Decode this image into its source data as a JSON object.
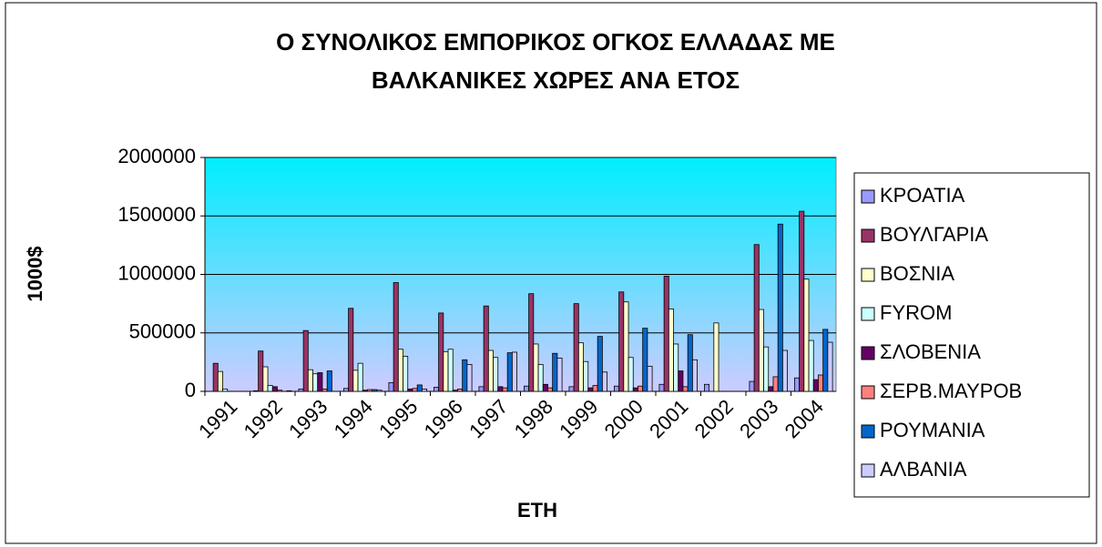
{
  "chart_data": {
    "type": "bar",
    "title": [
      "Ο ΣΥΝΟΛΙΚΟΣ ΕΜΠΟΡΙΚΟΣ ΟΓΚΟΣ ΕΛΛΑΔΑΣ ΜΕ",
      "ΒΑΛΚΑΝΙΚΕΣ ΧΩΡΕΣ ΑΝΑ ΕΤΟΣ"
    ],
    "x_label": "ΕΤΗ",
    "y_label": "1000$",
    "categories": [
      "1991",
      "1992",
      "1993",
      "1994",
      "1995",
      "1996",
      "1997",
      "1998",
      "1999",
      "2000",
      "2001",
      "2002",
      "2003",
      "2004"
    ],
    "series": [
      {
        "name": "ΚΡΟΑΤΙΑ",
        "color": "#9999ff",
        "values": [
          0,
          5000,
          20000,
          25000,
          75000,
          35000,
          40000,
          45000,
          40000,
          45000,
          60000,
          60000,
          85000,
          115000
        ]
      },
      {
        "name": "ΒΟΥΛΓΑΡΙΑ",
        "color": "#993366",
        "values": [
          240000,
          345000,
          520000,
          710000,
          930000,
          670000,
          730000,
          835000,
          750000,
          850000,
          985000,
          0,
          1255000,
          1540000
        ]
      },
      {
        "name": "ΒΟΣΝΙΑ",
        "color": "#ffffcc",
        "values": [
          170000,
          210000,
          185000,
          180000,
          360000,
          340000,
          350000,
          405000,
          415000,
          765000,
          705000,
          585000,
          700000,
          960000
        ]
      },
      {
        "name": "FYROM",
        "color": "#ccffff",
        "values": [
          20000,
          50000,
          150000,
          240000,
          300000,
          360000,
          290000,
          230000,
          255000,
          290000,
          405000,
          0,
          380000,
          435000
        ]
      },
      {
        "name": "ΣΛΟΒΕΝΙΑ",
        "color": "#660066",
        "values": [
          0,
          40000,
          160000,
          10000,
          20000,
          10000,
          40000,
          60000,
          30000,
          30000,
          175000,
          0,
          40000,
          100000
        ]
      },
      {
        "name": "ΣΕΡΒ.ΜΑΥΡΟΒ",
        "color": "#ff8080",
        "values": [
          0,
          10000,
          20000,
          15000,
          25000,
          20000,
          30000,
          30000,
          50000,
          45000,
          40000,
          0,
          125000,
          140000
        ]
      },
      {
        "name": "ΡΟΥΜΑΝΙΑ",
        "color": "#0066cc",
        "values": [
          0,
          0,
          175000,
          15000,
          55000,
          270000,
          330000,
          325000,
          470000,
          540000,
          485000,
          0,
          1430000,
          530000
        ]
      },
      {
        "name": "ΑΛΒΑΝΙΑ",
        "color": "#ccccff",
        "values": [
          0,
          5000,
          0,
          10000,
          20000,
          230000,
          335000,
          285000,
          165000,
          215000,
          270000,
          0,
          350000,
          420000
        ]
      }
    ],
    "ylim": [
      0,
      2000000
    ],
    "yticks": [
      0,
      500000,
      1000000,
      1500000,
      2000000
    ],
    "grid": true,
    "legend": "right"
  }
}
